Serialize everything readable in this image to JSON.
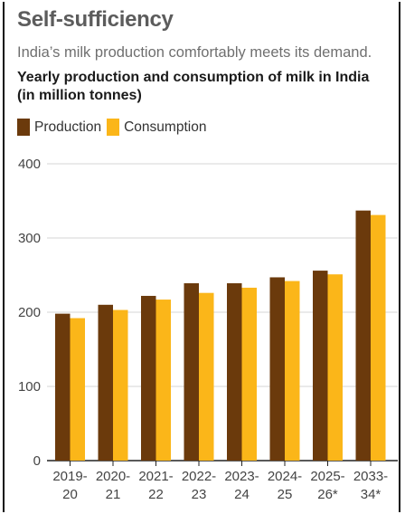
{
  "header": {
    "title": "Self-sufficiency",
    "subtitle": "India’s milk production comfortably meets its demand.",
    "chart_heading": "Yearly production and consumption of milk in India (in million tonnes)"
  },
  "colors": {
    "production": "#6b3a0c",
    "consumption": "#fbb619"
  },
  "chart_data": {
    "type": "bar",
    "title": "Yearly production and consumption of milk in India (in million tonnes)",
    "categories": [
      [
        "2019-",
        "20"
      ],
      [
        "2020-",
        "21"
      ],
      [
        "2021-",
        "22"
      ],
      [
        "2022-",
        "23"
      ],
      [
        "2023-",
        "24"
      ],
      [
        "2024-",
        "25"
      ],
      [
        "2025-",
        "26*"
      ],
      [
        "2033-",
        "34*"
      ]
    ],
    "series": [
      {
        "name": "Production",
        "values": [
          198,
          210,
          222,
          239,
          239,
          247,
          256,
          337
        ]
      },
      {
        "name": "Consumption",
        "values": [
          192,
          203,
          217,
          226,
          233,
          242,
          251,
          331
        ]
      }
    ],
    "ylim": [
      0,
      400
    ],
    "yticks": [
      0,
      100,
      200,
      300,
      400
    ],
    "grid": true,
    "legend": "top-left"
  }
}
